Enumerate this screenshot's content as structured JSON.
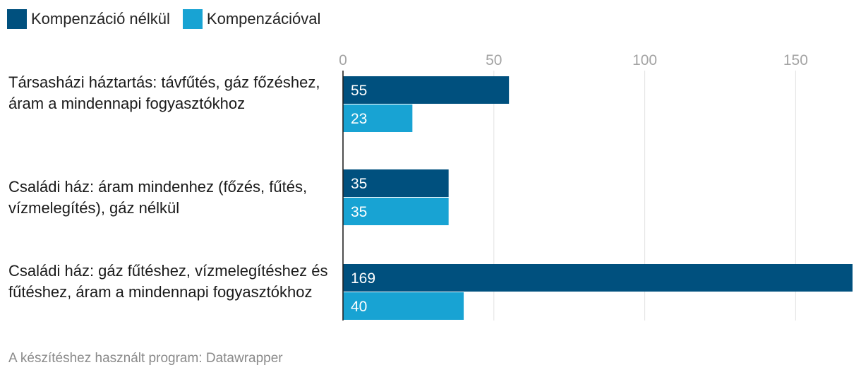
{
  "legend": [
    {
      "label": "Kompenzáció nélkül",
      "color": "#00507e"
    },
    {
      "label": "Kompenzációval",
      "color": "#18a3d3"
    }
  ],
  "footer": "A készítéshez használt program: Datawrapper",
  "chart_data": {
    "type": "bar",
    "orientation": "horizontal",
    "categories": [
      "Társasházi háztartás: távfűtés, gáz főzéshez, áram a mindennapi fogyasztókhoz",
      "Családi ház: áram mindenhez (főzés, fűtés, vízmelegítés), gáz nélkül",
      "Családi ház: gáz fűtéshez, vízmelegítéshez és fűtéshez, áram a mindennapi fogyasztókhoz"
    ],
    "series": [
      {
        "name": "Kompenzáció nélkül",
        "values": [
          55,
          35,
          169
        ],
        "color": "#00507e"
      },
      {
        "name": "Kompenzációval",
        "values": [
          23,
          35,
          40
        ],
        "color": "#18a3d3"
      }
    ],
    "xticks": [
      0,
      50,
      100,
      150
    ],
    "xlim": [
      0,
      169
    ],
    "grid": true,
    "legend_position": "top-left",
    "data_labels": true
  }
}
